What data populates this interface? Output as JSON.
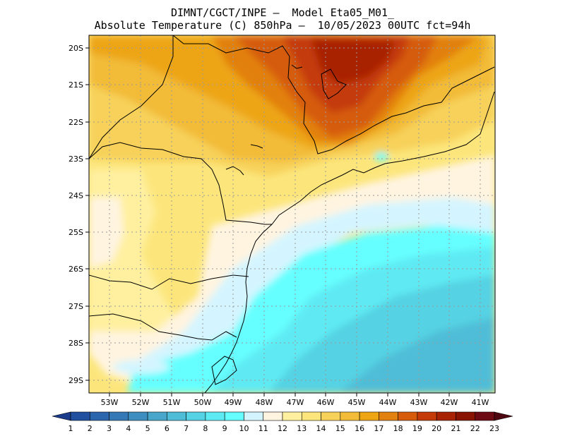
{
  "header": {
    "line1": "DIMNT/CGCT/INPE –  Model Eta05_M01_",
    "line2": "Absolute Temperature (C) 850hPa –  10/05/2023 00UTC fct=94h"
  },
  "map": {
    "lat_labels": [
      "20S",
      "21S",
      "22S",
      "23S",
      "24S",
      "25S",
      "26S",
      "27S",
      "28S",
      "29S"
    ],
    "lon_labels": [
      "53W",
      "52W",
      "51W",
      "50W",
      "49W",
      "48W",
      "47W",
      "46W",
      "45W",
      "44W",
      "43W",
      "42W",
      "41W"
    ],
    "grid": "dotted",
    "colors": {
      "land_line": "#000000",
      "grid": "#9a9a9a"
    }
  },
  "colorbar": {
    "labels": [
      "1",
      "2",
      "3",
      "4",
      "5",
      "6",
      "7",
      "8",
      "9",
      "10",
      "11",
      "12",
      "13",
      "14",
      "15",
      "16",
      "17",
      "18",
      "19",
      "20",
      "21",
      "22",
      "23"
    ],
    "colors": [
      "#1a3a8c",
      "#1f4f9e",
      "#2b65ad",
      "#3479b6",
      "#3e8fc0",
      "#47a6c9",
      "#4fbdd7",
      "#55d2e3",
      "#5eeaf3",
      "#66ffff",
      "#d4f5ff",
      "#fff4e0",
      "#fff0a0",
      "#fce67c",
      "#f7d15a",
      "#f2bb38",
      "#eda514",
      "#e28010",
      "#d65c0c",
      "#c43a08",
      "#a82306",
      "#8a1404",
      "#6e0a14",
      "#4e0610"
    ]
  }
}
